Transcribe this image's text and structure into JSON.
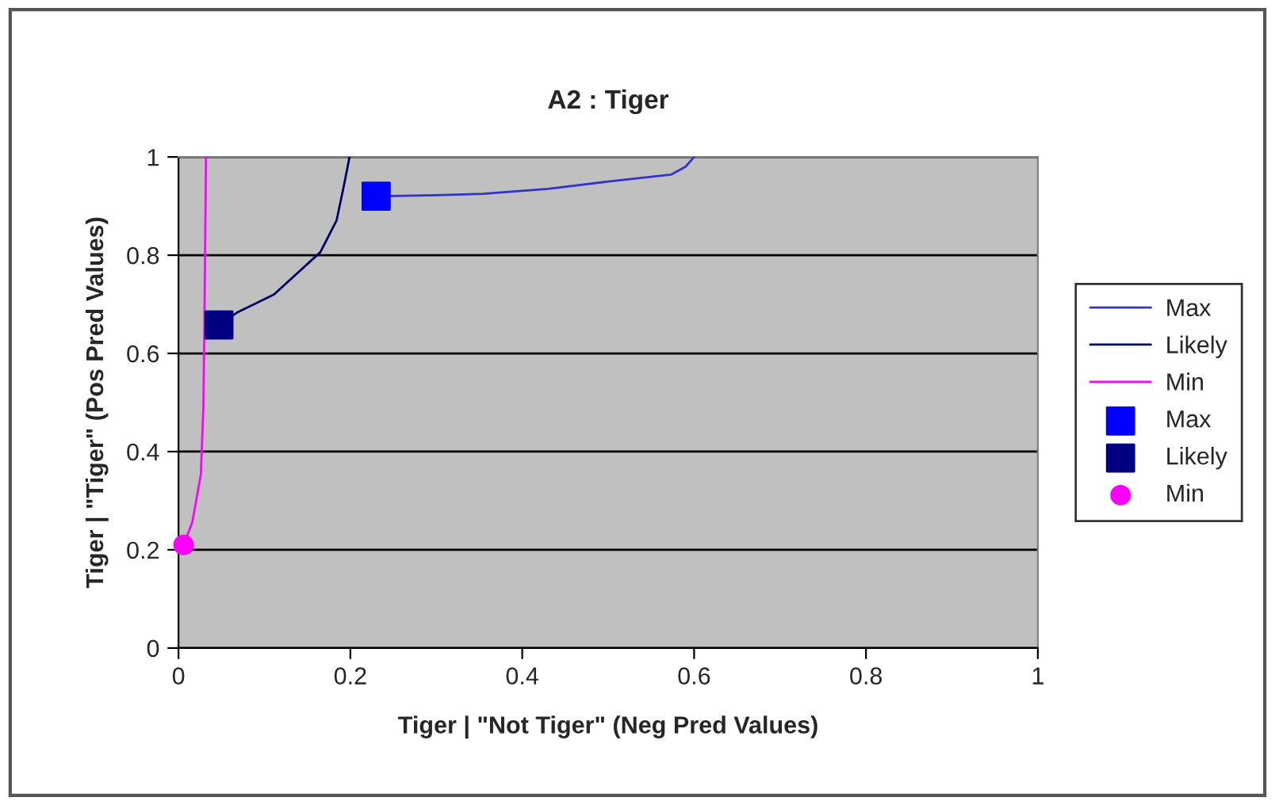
{
  "chart_data": {
    "type": "line",
    "title": "A2 : Tiger",
    "xlabel": "Tiger | \"Not Tiger\" (Neg Pred Values)",
    "ylabel": "Tiger | \"Tiger\" (Pos Pred Values)",
    "xlim": [
      0,
      1
    ],
    "ylim": [
      0,
      1
    ],
    "xticks": [
      0,
      0.2,
      0.4,
      0.6,
      0.8,
      1
    ],
    "yticks": [
      0,
      0.2,
      0.4,
      0.6,
      0.8,
      1
    ],
    "grid": "y",
    "legend": "right",
    "line_style": "solid",
    "series": [
      {
        "name": "Max",
        "marker": "none",
        "color": "#3333cc",
        "x": [
          0.23,
          0.3,
          0.354,
          0.43,
          0.5,
          0.573,
          0.59,
          0.6
        ],
        "values": [
          0.92,
          0.922,
          0.925,
          0.935,
          0.95,
          0.964,
          0.98,
          1.0
        ]
      },
      {
        "name": "Likely",
        "marker": "none",
        "color": "#000066",
        "x": [
          0.047,
          0.068,
          0.111,
          0.165,
          0.184,
          0.193,
          0.199
        ],
        "values": [
          0.658,
          0.683,
          0.72,
          0.806,
          0.871,
          0.946,
          1.0
        ]
      },
      {
        "name": "Min",
        "marker": "none",
        "color": "#ff00ff",
        "x": [
          0.006,
          0.016,
          0.026,
          0.029,
          0.03,
          0.032
        ],
        "values": [
          0.21,
          0.256,
          0.353,
          0.493,
          0.634,
          1.0
        ]
      },
      {
        "name": "Max",
        "type": "scatter",
        "marker": "square",
        "color": "#0000ff",
        "x": [
          0.23
        ],
        "values": [
          0.92
        ]
      },
      {
        "name": "Likely",
        "type": "scatter",
        "marker": "square",
        "color": "#000080",
        "x": [
          0.047
        ],
        "values": [
          0.658
        ]
      },
      {
        "name": "Min",
        "type": "scatter",
        "marker": "circle",
        "color": "#ff00ff",
        "x": [
          0.006
        ],
        "values": [
          0.21
        ]
      }
    ]
  }
}
